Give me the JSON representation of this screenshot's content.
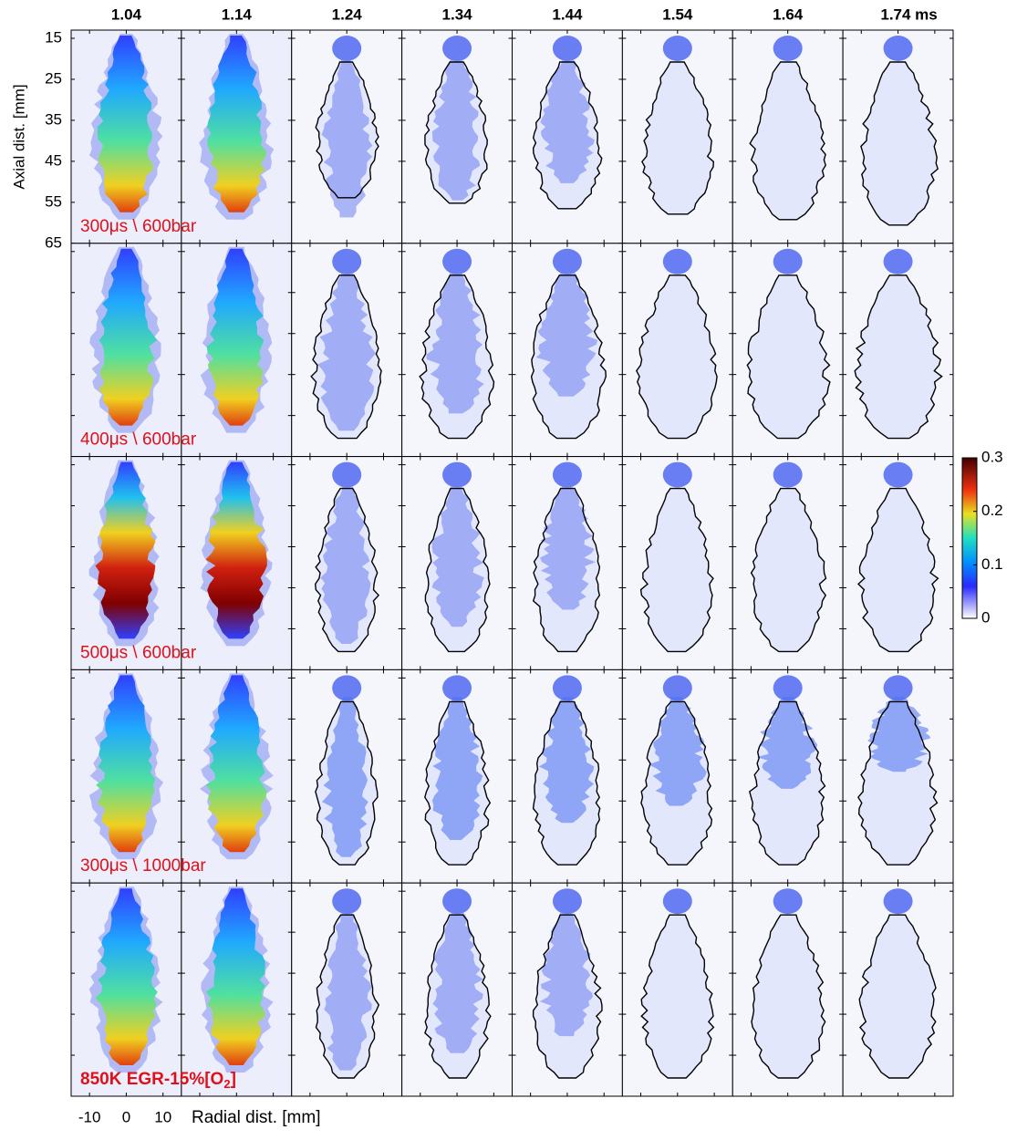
{
  "figure": {
    "columns": [
      "1.04",
      "1.14",
      "1.24",
      "1.34",
      "1.44",
      "1.54",
      "1.64",
      "1.74 ms"
    ],
    "rows": [
      {
        "label": "300μs \\ 600bar"
      },
      {
        "label": "400μs \\ 600bar"
      },
      {
        "label": "500μs \\ 600bar"
      },
      {
        "label": "300μs \\ 1000bar"
      },
      {
        "label": "850K EGR-15%[O",
        "subscript": "2",
        "label_end": "]"
      }
    ],
    "y_axis": {
      "label": "Axial dist. [mm]",
      "ylim": [
        13,
        65
      ],
      "yticks": [
        15,
        25,
        35,
        45,
        55,
        65
      ]
    },
    "x_axis": {
      "label": "Radial dist. [mm]",
      "xlim": [
        -15,
        15
      ],
      "xticks": [
        -10,
        0,
        10
      ]
    },
    "colorbar": {
      "clim": [
        0,
        0.3
      ],
      "ticks": [
        0,
        0.1,
        0.2,
        0.3
      ]
    }
  }
}
